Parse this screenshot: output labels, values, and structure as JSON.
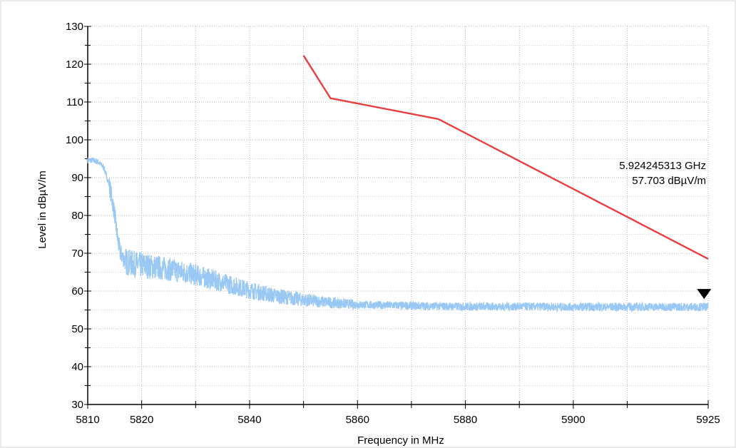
{
  "chart_data": {
    "type": "line",
    "xlabel": "Frequency in MHz",
    "ylabel": "Level in dBµV/m",
    "xlim": [
      5810,
      5925
    ],
    "ylim": [
      30,
      130
    ],
    "x_ticks": [
      5810,
      5820,
      5840,
      5860,
      5880,
      5900,
      5925
    ],
    "x_minor_ticks": [
      5830,
      5850,
      5870,
      5890,
      5910
    ],
    "y_ticks": [
      30,
      40,
      50,
      60,
      70,
      80,
      90,
      100,
      110,
      120,
      130
    ],
    "grid": true,
    "series": [
      {
        "color": "#99c8f5",
        "noisy": true,
        "x": [
          5810,
          5811,
          5812,
          5813,
          5814,
          5815,
          5815.5,
          5816,
          5817,
          5818,
          5820,
          5825,
          5830,
          5835,
          5840,
          5845,
          5850,
          5855,
          5860,
          5870,
          5880,
          5890,
          5900,
          5910,
          5920,
          5925
        ],
        "values": [
          94.5,
          94.5,
          94.0,
          92.5,
          88.0,
          80.0,
          74.0,
          70.0,
          67.5,
          67.0,
          66.5,
          65.5,
          64.0,
          62.0,
          60.0,
          58.5,
          57.5,
          56.8,
          56.3,
          56.0,
          55.8,
          55.8,
          55.7,
          55.7,
          55.7,
          55.7
        ]
      },
      {
        "color": "#e84040",
        "x": [
          5850,
          5855,
          5875,
          5925
        ],
        "values": [
          122.3,
          111.0,
          105.5,
          68.5
        ]
      }
    ],
    "marker": {
      "x": 5924.245313,
      "y": 57.703,
      "label_freq": "5.924245313 GHz",
      "label_level": "57.703 dBµV/m",
      "color": "#000000"
    }
  }
}
